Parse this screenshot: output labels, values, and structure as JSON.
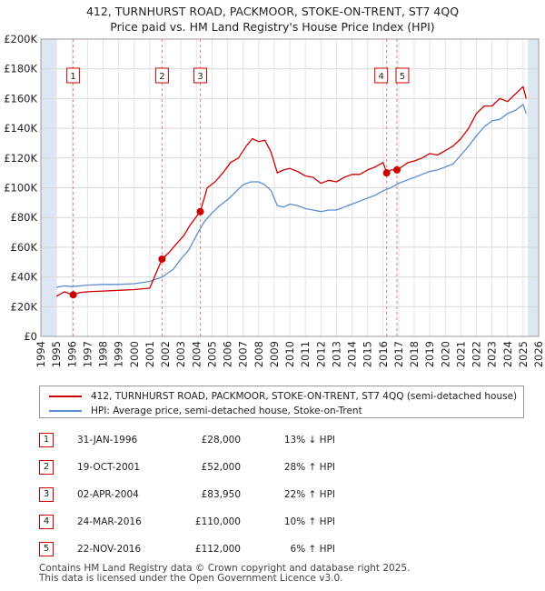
{
  "title_line1": "412, TURNHURST ROAD, PACKMOOR, STOKE-ON-TRENT, ST7 4QQ",
  "title_line2": "Price paid vs. HM Land Registry's House Price Index (HPI)",
  "colors": {
    "property": "#cc0000",
    "hpi": "#5b8ed1",
    "shade": "#dde6f3",
    "marker_line": "#e08080"
  },
  "chart_data": {
    "type": "line",
    "title": "412, TURNHURST ROAD, PACKMOOR, STOKE-ON-TRENT, ST7 4QQ — Price paid vs. HM Land Registry's House Price Index (HPI)",
    "xlim": [
      1994,
      2026
    ],
    "ylim": [
      0,
      200000
    ],
    "x_ticks": [
      1994,
      1995,
      1996,
      1997,
      1998,
      1999,
      2000,
      2001,
      2002,
      2003,
      2004,
      2005,
      2006,
      2007,
      2008,
      2009,
      2010,
      2011,
      2012,
      2013,
      2014,
      2015,
      2016,
      2017,
      2018,
      2019,
      2020,
      2021,
      2022,
      2023,
      2024,
      2025,
      2026
    ],
    "y_ticks": [
      {
        "value": 0,
        "label": "£0"
      },
      {
        "value": 20000,
        "label": "£20K"
      },
      {
        "value": 40000,
        "label": "£40K"
      },
      {
        "value": 60000,
        "label": "£60K"
      },
      {
        "value": 80000,
        "label": "£80K"
      },
      {
        "value": 100000,
        "label": "£100K"
      },
      {
        "value": 120000,
        "label": "£120K"
      },
      {
        "value": 140000,
        "label": "£140K"
      },
      {
        "value": 160000,
        "label": "£160K"
      },
      {
        "value": 180000,
        "label": "£180K"
      },
      {
        "value": 200000,
        "label": "£200K"
      }
    ],
    "shaded_ranges": [
      [
        1994,
        1995.0
      ],
      [
        2025.3,
        2026
      ]
    ],
    "series": [
      {
        "name": "412, TURNHURST ROAD, PACKMOOR, STOKE-ON-TRENT, ST7 4QQ (semi-detached house)",
        "x": [
          1995.0,
          1995.5,
          1996.08,
          1996.5,
          1997,
          1998,
          1999,
          2000,
          2001,
          2001.79,
          2002.2,
          2002.7,
          2003.2,
          2003.6,
          2004.25,
          2004.7,
          2005.2,
          2005.7,
          2006.2,
          2006.7,
          2007.2,
          2007.6,
          2008.0,
          2008.4,
          2008.8,
          2009.2,
          2009.6,
          2010.0,
          2010.5,
          2011,
          2011.5,
          2012,
          2012.5,
          2013,
          2013.5,
          2014,
          2014.5,
          2015,
          2015.5,
          2016.0,
          2016.23,
          2016.5,
          2016.89,
          2017.2,
          2017.6,
          2018,
          2018.5,
          2019,
          2019.5,
          2020,
          2020.5,
          2021,
          2021.5,
          2022,
          2022.5,
          2023,
          2023.5,
          2024,
          2024.5,
          2025.0,
          2025.2
        ],
        "values": [
          27000,
          30000,
          28000,
          29500,
          30000,
          30500,
          31000,
          31500,
          32500,
          52000,
          56000,
          62000,
          68000,
          75000,
          83950,
          100000,
          104000,
          110000,
          117000,
          120000,
          128000,
          133000,
          131000,
          132000,
          124000,
          110000,
          112000,
          113000,
          111000,
          108000,
          107000,
          103000,
          105000,
          104000,
          107000,
          109000,
          109000,
          112000,
          114000,
          117000,
          110000,
          112000,
          112000,
          114000,
          117000,
          118000,
          120000,
          123000,
          122000,
          125000,
          128000,
          133000,
          140000,
          150000,
          155000,
          155000,
          160000,
          158000,
          163000,
          168000,
          160000
        ]
      },
      {
        "name": "HPI: Average price, semi-detached house, Stoke-on-Trent",
        "x": [
          1995.0,
          1995.5,
          1996,
          1996.5,
          1997,
          1998,
          1999,
          2000,
          2001,
          2001.8,
          2002.5,
          2003,
          2003.5,
          2004,
          2004.5,
          2005,
          2005.5,
          2006,
          2006.5,
          2007,
          2007.5,
          2008,
          2008.4,
          2008.8,
          2009.2,
          2009.6,
          2010,
          2010.5,
          2011,
          2011.5,
          2012,
          2012.5,
          2013,
          2013.5,
          2014,
          2014.5,
          2015,
          2015.5,
          2016,
          2016.5,
          2017,
          2017.5,
          2018,
          2018.5,
          2019,
          2019.5,
          2020,
          2020.5,
          2021,
          2021.5,
          2022,
          2022.5,
          2023,
          2023.5,
          2024,
          2024.5,
          2025.0,
          2025.2
        ],
        "values": [
          33000,
          34000,
          33500,
          34000,
          34500,
          35000,
          35000,
          35500,
          37000,
          40000,
          45000,
          52000,
          58000,
          68000,
          77000,
          83000,
          88000,
          92000,
          97000,
          102000,
          104000,
          104000,
          102000,
          98000,
          88000,
          87000,
          89000,
          88000,
          86000,
          85000,
          84000,
          85000,
          85000,
          87000,
          89000,
          91000,
          93000,
          95000,
          98000,
          100000,
          103000,
          105000,
          107000,
          109000,
          111000,
          112000,
          114000,
          116000,
          122000,
          128000,
          135000,
          141000,
          145000,
          146000,
          150000,
          152000,
          156000,
          150000
        ]
      }
    ],
    "sale_markers": [
      {
        "label": "1",
        "x": 1996.08,
        "value": 28000
      },
      {
        "label": "2",
        "x": 2001.79,
        "value": 52000
      },
      {
        "label": "3",
        "x": 2004.25,
        "value": 83950
      },
      {
        "label": "4",
        "x": 2016.23,
        "value": 110000
      },
      {
        "label": "5",
        "x": 2016.89,
        "value": 112000
      }
    ]
  },
  "legend": {
    "property_label": "412, TURNHURST ROAD, PACKMOOR, STOKE-ON-TRENT, ST7 4QQ (semi-detached house)",
    "hpi_label": "HPI: Average price, semi-detached house, Stoke-on-Trent"
  },
  "sales": [
    {
      "num": "1",
      "date": "31-JAN-1996",
      "price": "£28,000",
      "hpi": "13% ↓ HPI"
    },
    {
      "num": "2",
      "date": "19-OCT-2001",
      "price": "£52,000",
      "hpi": "28% ↑ HPI"
    },
    {
      "num": "3",
      "date": "02-APR-2004",
      "price": "£83,950",
      "hpi": "22% ↑ HPI"
    },
    {
      "num": "4",
      "date": "24-MAR-2016",
      "price": "£110,000",
      "hpi": "10% ↑ HPI"
    },
    {
      "num": "5",
      "date": "22-NOV-2016",
      "price": "£112,000",
      "hpi": "6% ↑ HPI"
    }
  ],
  "footer": {
    "line1": "Contains HM Land Registry data © Crown copyright and database right 2025.",
    "line2": "This data is licensed under the Open Government Licence v3.0."
  }
}
